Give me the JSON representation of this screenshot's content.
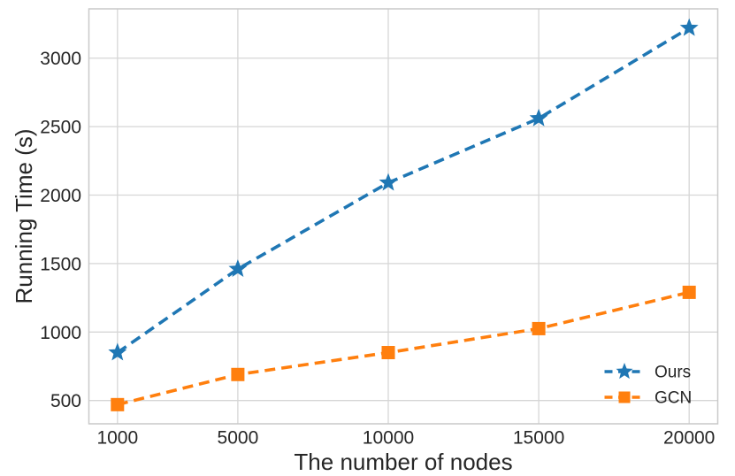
{
  "chart_data": {
    "type": "line",
    "title": "",
    "xlabel": "The number of nodes",
    "ylabel": "Running Time (s)",
    "x": [
      1000,
      5000,
      10000,
      15000,
      20000
    ],
    "x_tick_labels": [
      "1000",
      "5000",
      "10000",
      "15000",
      "20000"
    ],
    "y_ticks": [
      500,
      1000,
      1500,
      2000,
      2500,
      3000
    ],
    "y_tick_labels": [
      "500",
      "1000",
      "1500",
      "2000",
      "2500",
      "3000"
    ],
    "xlim": [
      50,
      20950
    ],
    "ylim": [
      330,
      3360
    ],
    "grid": true,
    "legend_position": "lower right",
    "series": [
      {
        "name": "Ours",
        "values": [
          850,
          1460,
          2090,
          2560,
          3220
        ],
        "color": "#1f77b4",
        "marker": "star",
        "linestyle": "dashed"
      },
      {
        "name": "GCN",
        "values": [
          470,
          690,
          850,
          1025,
          1290
        ],
        "color": "#ff7f0e",
        "marker": "square",
        "linestyle": "dashed"
      }
    ],
    "colors": {
      "background": "#ffffff",
      "grid": "#d6d6d6",
      "frame": "#c9c9c9",
      "text": "#262626"
    }
  }
}
